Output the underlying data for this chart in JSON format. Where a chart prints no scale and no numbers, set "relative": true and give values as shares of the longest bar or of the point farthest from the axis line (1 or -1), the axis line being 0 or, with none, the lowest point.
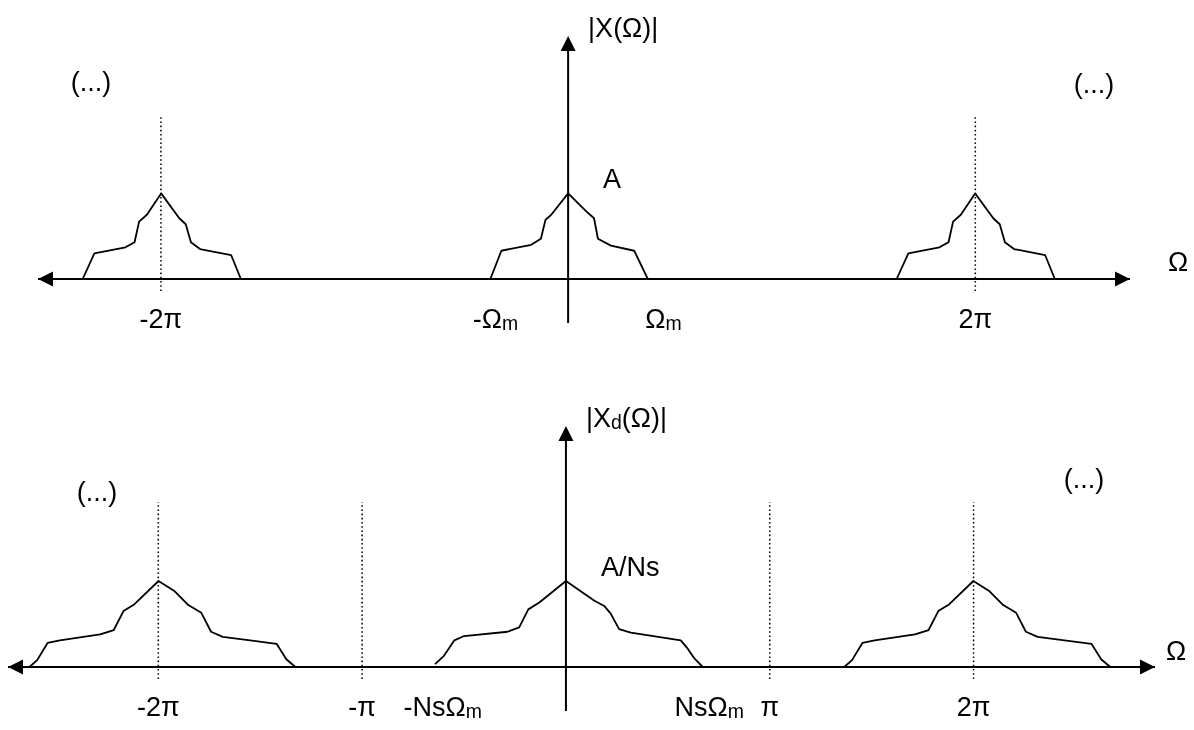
{
  "chart_data": [
    {
      "type": "line",
      "relative": true,
      "xlabel": "Ω",
      "ylabel": "|X(Ω)|",
      "xlim": [
        -8.18,
        8.67
      ],
      "xticks": [
        {
          "value": -6.2832,
          "label": "-2π"
        },
        {
          "value": -1.12,
          "label": "-Ω$_{m}$"
        },
        {
          "value": 1.47,
          "label": "Ω$_{m}$"
        },
        {
          "value": 6.2832,
          "label": "2π"
        }
      ],
      "series": [
        {
          "color": "#000000",
          "x": [
            -7.49,
            -7.31,
            -6.83,
            -6.69,
            -6.62,
            -6.5,
            -6.28,
            -6.0,
            -5.9,
            -5.82,
            -5.68,
            -5.2,
            -5.05
          ],
          "values": [
            0,
            0.3,
            0.37,
            0.43,
            0.67,
            0.75,
            1,
            0.71,
            0.64,
            0.43,
            0.35,
            0.28,
            0
          ]
        },
        {
          "color": "#000000",
          "x": [
            -1.2,
            -1.03,
            -0.57,
            -0.42,
            -0.35,
            -0.26,
            0,
            0.28,
            0.4,
            0.46,
            0.66,
            1.02,
            1.23
          ],
          "values": [
            0,
            0.33,
            0.4,
            0.47,
            0.69,
            0.75,
            1,
            0.79,
            0.71,
            0.47,
            0.39,
            0.33,
            0
          ]
        },
        {
          "color": "#000000",
          "x": [
            5.07,
            5.25,
            5.73,
            5.87,
            5.94,
            6.06,
            6.28,
            6.56,
            6.66,
            6.74,
            6.88,
            7.36,
            7.51
          ],
          "values": [
            0,
            0.3,
            0.37,
            0.43,
            0.67,
            0.75,
            1,
            0.71,
            0.64,
            0.43,
            0.35,
            0.28,
            0
          ]
        }
      ],
      "ref_lines": [
        {
          "axis": "x",
          "value": -6.2832,
          "color": "#000000",
          "line_style": "dotted"
        },
        {
          "axis": "x",
          "value": 6.2832,
          "color": "#000000",
          "line_style": "dotted"
        }
      ],
      "annotations": [
        "(...)",
        "(...)",
        {
          "text": "A",
          "x": 0,
          "y": 1
        }
      ]
    },
    {
      "type": "line",
      "relative": true,
      "xlabel": "Ω",
      "ylabel": "|X$_{d}$(Ω)|",
      "xlim": [
        -8.6,
        9.08
      ],
      "xticks": [
        {
          "value": -6.2832,
          "label": "-2π"
        },
        {
          "value": -3.1416,
          "label": "-π"
        },
        {
          "value": -1.9,
          "label": "-NsΩ$_{m}$"
        },
        {
          "value": 2.21,
          "label": "NsΩ$_{m}$"
        },
        {
          "value": 3.1416,
          "label": "π"
        },
        {
          "value": 6.2832,
          "label": "2π"
        }
      ],
      "series": [
        {
          "color": "#000000",
          "x": [
            -8.27,
            -8.15,
            -7.99,
            -7.8,
            -7.18,
            -6.97,
            -6.82,
            -6.65,
            -6.28,
            -6.03,
            -5.82,
            -5.62,
            -5.47,
            -5.29,
            -4.46,
            -4.31,
            -4.17
          ],
          "values": [
            0,
            0.08,
            0.28,
            0.31,
            0.38,
            0.43,
            0.65,
            0.73,
            1,
            0.88,
            0.72,
            0.63,
            0.41,
            0.35,
            0.27,
            0.09,
            0
          ]
        },
        {
          "color": "#000000",
          "x": [
            -2.01,
            -1.88,
            -1.72,
            -1.57,
            -0.9,
            -0.72,
            -0.58,
            -0.41,
            0,
            0.44,
            0.59,
            0.69,
            0.82,
            1.0,
            1.77,
            1.88,
            1.98,
            2.11
          ],
          "values": [
            0.04,
            0.13,
            0.31,
            0.36,
            0.41,
            0.46,
            0.67,
            0.75,
            1,
            0.77,
            0.71,
            0.62,
            0.44,
            0.4,
            0.31,
            0.21,
            0.1,
            0
          ]
        },
        {
          "color": "#000000",
          "x": [
            4.29,
            4.41,
            4.57,
            4.76,
            5.38,
            5.59,
            5.74,
            5.91,
            6.28,
            6.53,
            6.74,
            6.94,
            7.09,
            7.27,
            8.1,
            8.25,
            8.39
          ],
          "values": [
            0,
            0.08,
            0.28,
            0.31,
            0.38,
            0.43,
            0.65,
            0.73,
            1,
            0.88,
            0.72,
            0.63,
            0.41,
            0.35,
            0.27,
            0.09,
            0
          ]
        }
      ],
      "ref_lines": [
        {
          "axis": "x",
          "value": -6.2832,
          "color": "#000000",
          "line_style": "dotted"
        },
        {
          "axis": "x",
          "value": -3.1416,
          "color": "#000000",
          "line_style": "dotted"
        },
        {
          "axis": "x",
          "value": 3.1416,
          "color": "#000000",
          "line_style": "dotted"
        },
        {
          "axis": "x",
          "value": 6.2832,
          "color": "#000000",
          "line_style": "dotted"
        }
      ],
      "annotations": [
        "(...)",
        "(...)",
        {
          "text": "A/Ns",
          "x": 0,
          "y": 1
        }
      ]
    }
  ]
}
